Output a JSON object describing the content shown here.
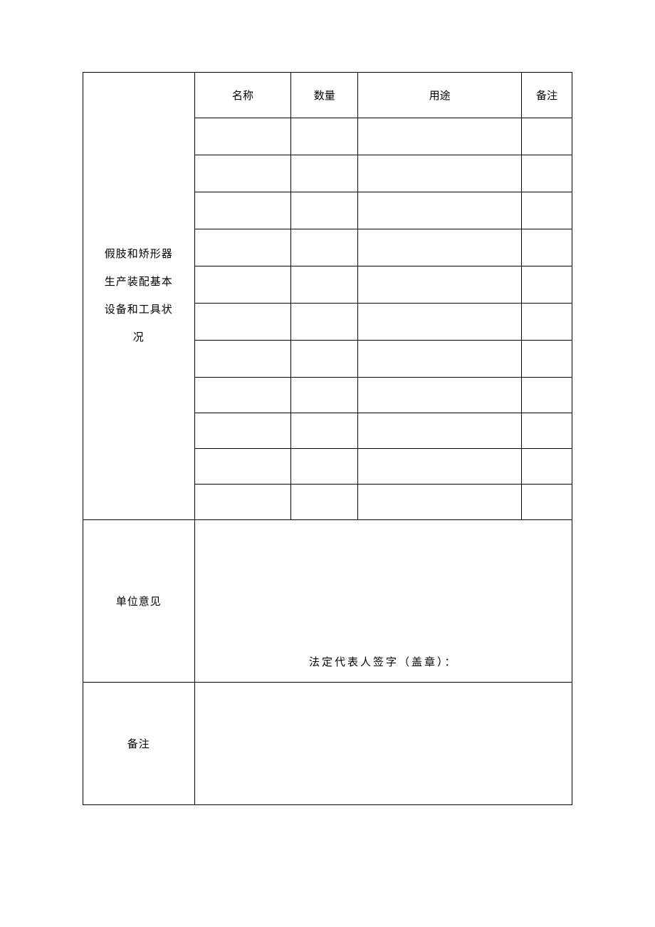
{
  "table": {
    "section1": {
      "label": "假肢和矫形器生产装配基本设备和工具状况",
      "label_lines": [
        "假肢和矫形器",
        "生产装配基本",
        "设备和工具状",
        "况"
      ],
      "headers": {
        "name": "名称",
        "quantity": "数量",
        "purpose": "用途",
        "note": "备注"
      },
      "rows": [
        {
          "name": "",
          "quantity": "",
          "purpose": "",
          "note": ""
        },
        {
          "name": "",
          "quantity": "",
          "purpose": "",
          "note": ""
        },
        {
          "name": "",
          "quantity": "",
          "purpose": "",
          "note": ""
        },
        {
          "name": "",
          "quantity": "",
          "purpose": "",
          "note": ""
        },
        {
          "name": "",
          "quantity": "",
          "purpose": "",
          "note": ""
        },
        {
          "name": "",
          "quantity": "",
          "purpose": "",
          "note": ""
        },
        {
          "name": "",
          "quantity": "",
          "purpose": "",
          "note": ""
        },
        {
          "name": "",
          "quantity": "",
          "purpose": "",
          "note": ""
        },
        {
          "name": "",
          "quantity": "",
          "purpose": "",
          "note": ""
        },
        {
          "name": "",
          "quantity": "",
          "purpose": "",
          "note": ""
        },
        {
          "name": "",
          "quantity": "",
          "purpose": "",
          "note": ""
        }
      ]
    },
    "section2": {
      "label": "单位意见",
      "signature_text": "法定代表人签字（盖章）："
    },
    "section3": {
      "label": "备注",
      "content": ""
    }
  },
  "style": {
    "font_family": "SimSun",
    "font_size": 15,
    "border_color": "#000000",
    "background_color": "#ffffff",
    "text_color": "#000000",
    "letter_spacing_wide": 3,
    "line_height_label": 2.6,
    "col_widths": {
      "label": 150,
      "name": 130,
      "quantity": 90,
      "purpose": 220,
      "note": 68
    },
    "row_heights": {
      "header": 64,
      "data": 52,
      "data_sm": 50,
      "opinion": 228,
      "remark": 172
    }
  }
}
